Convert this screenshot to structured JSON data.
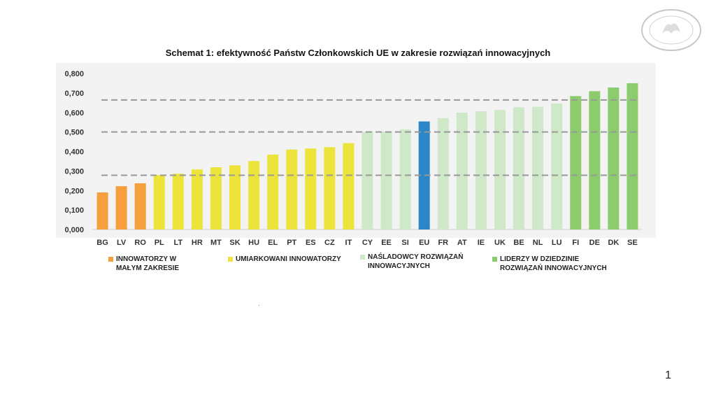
{
  "title": "Schemat 1: efektywność Państw Członkowskich UE w zakresie rozwiązań innowacyjnych",
  "page_number": "1",
  "legend": [
    {
      "label": "INNOWATORZY  W\nMAŁYM ZAKRESIE",
      "color": "#f5a03c"
    },
    {
      "label": "UMIARKOWANI INNOWATORZY",
      "color": "#f0e040"
    },
    {
      "label": "NAŚLADOWCY ROZWIĄZAŃ\nINNOWACYJNYCH",
      "color": "#cfe8c8"
    },
    {
      "label": "LIDERZY W DZIEDZINIE\nROZWIĄZAŃ INNOWACYJNYCH",
      "color": "#8ccc6c"
    }
  ],
  "colors": {
    "modest": "#f5a03c",
    "moderate": "#ece43a",
    "follower": "#cfe8c8",
    "leader": "#8ccc6c",
    "eu": "#2b86c8",
    "reference_line": "#999999",
    "plot_background": "#f3f3f3"
  },
  "chart_data": {
    "type": "bar",
    "title": "Schemat 1: efektywność Państw Członkowskich UE w zakresie rozwiązań innowacyjnych",
    "categories": [
      "BG",
      "LV",
      "RO",
      "PL",
      "LT",
      "HR",
      "MT",
      "SK",
      "HU",
      "EL",
      "PT",
      "ES",
      "CZ",
      "IT",
      "CY",
      "EE",
      "SI",
      "EU",
      "FR",
      "AT",
      "IE",
      "UK",
      "BE",
      "NL",
      "LU",
      "FI",
      "DE",
      "DK",
      "SE"
    ],
    "values": [
      0.19,
      0.222,
      0.237,
      0.279,
      0.286,
      0.308,
      0.319,
      0.329,
      0.351,
      0.384,
      0.41,
      0.415,
      0.422,
      0.443,
      0.501,
      0.502,
      0.513,
      0.554,
      0.571,
      0.599,
      0.606,
      0.613,
      0.627,
      0.629,
      0.646,
      0.684,
      0.709,
      0.728,
      0.75
    ],
    "groups": [
      "modest",
      "modest",
      "modest",
      "moderate",
      "moderate",
      "moderate",
      "moderate",
      "moderate",
      "moderate",
      "moderate",
      "moderate",
      "moderate",
      "moderate",
      "moderate",
      "follower",
      "follower",
      "follower",
      "eu",
      "follower",
      "follower",
      "follower",
      "follower",
      "follower",
      "follower",
      "follower",
      "leader",
      "leader",
      "leader",
      "leader"
    ],
    "yticks": [
      "0,800",
      "0,700",
      "0,600",
      "0,500",
      "0,400",
      "0,300",
      "0,200",
      "0,100",
      "0,000"
    ],
    "ylim": [
      0,
      0.8
    ],
    "reference_lines": [
      0.664,
      0.5,
      0.278
    ],
    "xlabel": "",
    "ylabel": "",
    "grid": false
  }
}
